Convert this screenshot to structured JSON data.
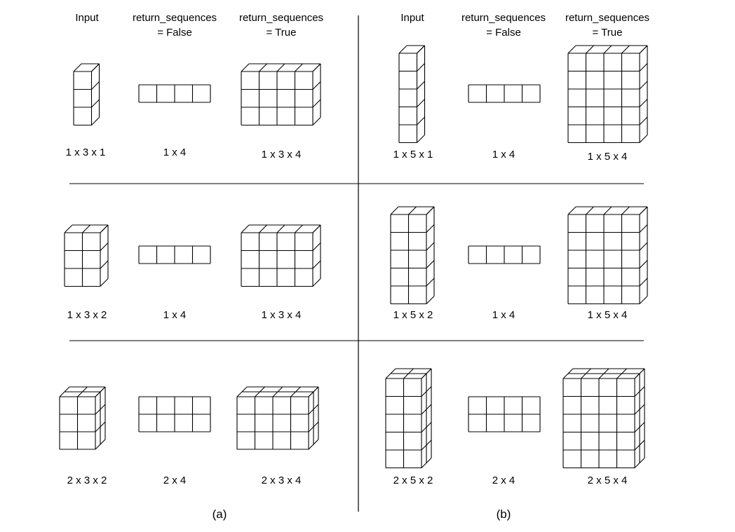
{
  "panels": [
    {
      "caption": "(a)",
      "headers": [
        {
          "line1": "Input",
          "line2": ""
        },
        {
          "line1": "return_sequences",
          "line2": "= False"
        },
        {
          "line1": "return_sequences",
          "line2": "= True"
        }
      ],
      "rows": [
        {
          "input_shape": "1 x 3 x 1",
          "false_shape": "1 x 4",
          "true_shape": "1 x 3 x 4",
          "input_grid": {
            "cols": 1,
            "rows": 3,
            "depth": 1
          },
          "false_grid": {
            "cols": 4,
            "rows": 1,
            "depth": 0
          },
          "true_grid": {
            "cols": 4,
            "rows": 3,
            "depth": 1
          }
        },
        {
          "input_shape": "1 x 3 x 2",
          "false_shape": "1 x 4",
          "true_shape": "1 x 3 x 4",
          "input_grid": {
            "cols": 2,
            "rows": 3,
            "depth": 1
          },
          "false_grid": {
            "cols": 4,
            "rows": 1,
            "depth": 0
          },
          "true_grid": {
            "cols": 4,
            "rows": 3,
            "depth": 1
          }
        },
        {
          "input_shape": "2 x 3 x 2",
          "false_shape": "2 x 4",
          "true_shape": "2 x 3 x 4",
          "input_grid": {
            "cols": 2,
            "rows": 3,
            "depth": 2
          },
          "false_grid": {
            "cols": 4,
            "rows": 2,
            "depth": 0
          },
          "true_grid": {
            "cols": 4,
            "rows": 3,
            "depth": 2
          }
        }
      ]
    },
    {
      "caption": "(b)",
      "headers": [
        {
          "line1": "Input",
          "line2": ""
        },
        {
          "line1": "return_sequences",
          "line2": "= False"
        },
        {
          "line1": "return_sequences",
          "line2": "= True"
        }
      ],
      "rows": [
        {
          "input_shape": "1 x 5 x 1",
          "false_shape": "1 x 4",
          "true_shape": "1 x 5 x 4",
          "input_grid": {
            "cols": 1,
            "rows": 5,
            "depth": 1
          },
          "false_grid": {
            "cols": 4,
            "rows": 1,
            "depth": 0
          },
          "true_grid": {
            "cols": 4,
            "rows": 5,
            "depth": 1
          }
        },
        {
          "input_shape": "1 x 5 x 2",
          "false_shape": "1 x 4",
          "true_shape": "1 x 5 x 4",
          "input_grid": {
            "cols": 2,
            "rows": 5,
            "depth": 1
          },
          "false_grid": {
            "cols": 4,
            "rows": 1,
            "depth": 0
          },
          "true_grid": {
            "cols": 4,
            "rows": 5,
            "depth": 1
          }
        },
        {
          "input_shape": "2 x 5 x 2",
          "false_shape": "2 x 4",
          "true_shape": "2 x 5 x 4",
          "input_grid": {
            "cols": 2,
            "rows": 5,
            "depth": 2
          },
          "false_grid": {
            "cols": 4,
            "rows": 2,
            "depth": 0
          },
          "true_grid": {
            "cols": 4,
            "rows": 5,
            "depth": 2
          }
        }
      ]
    }
  ]
}
